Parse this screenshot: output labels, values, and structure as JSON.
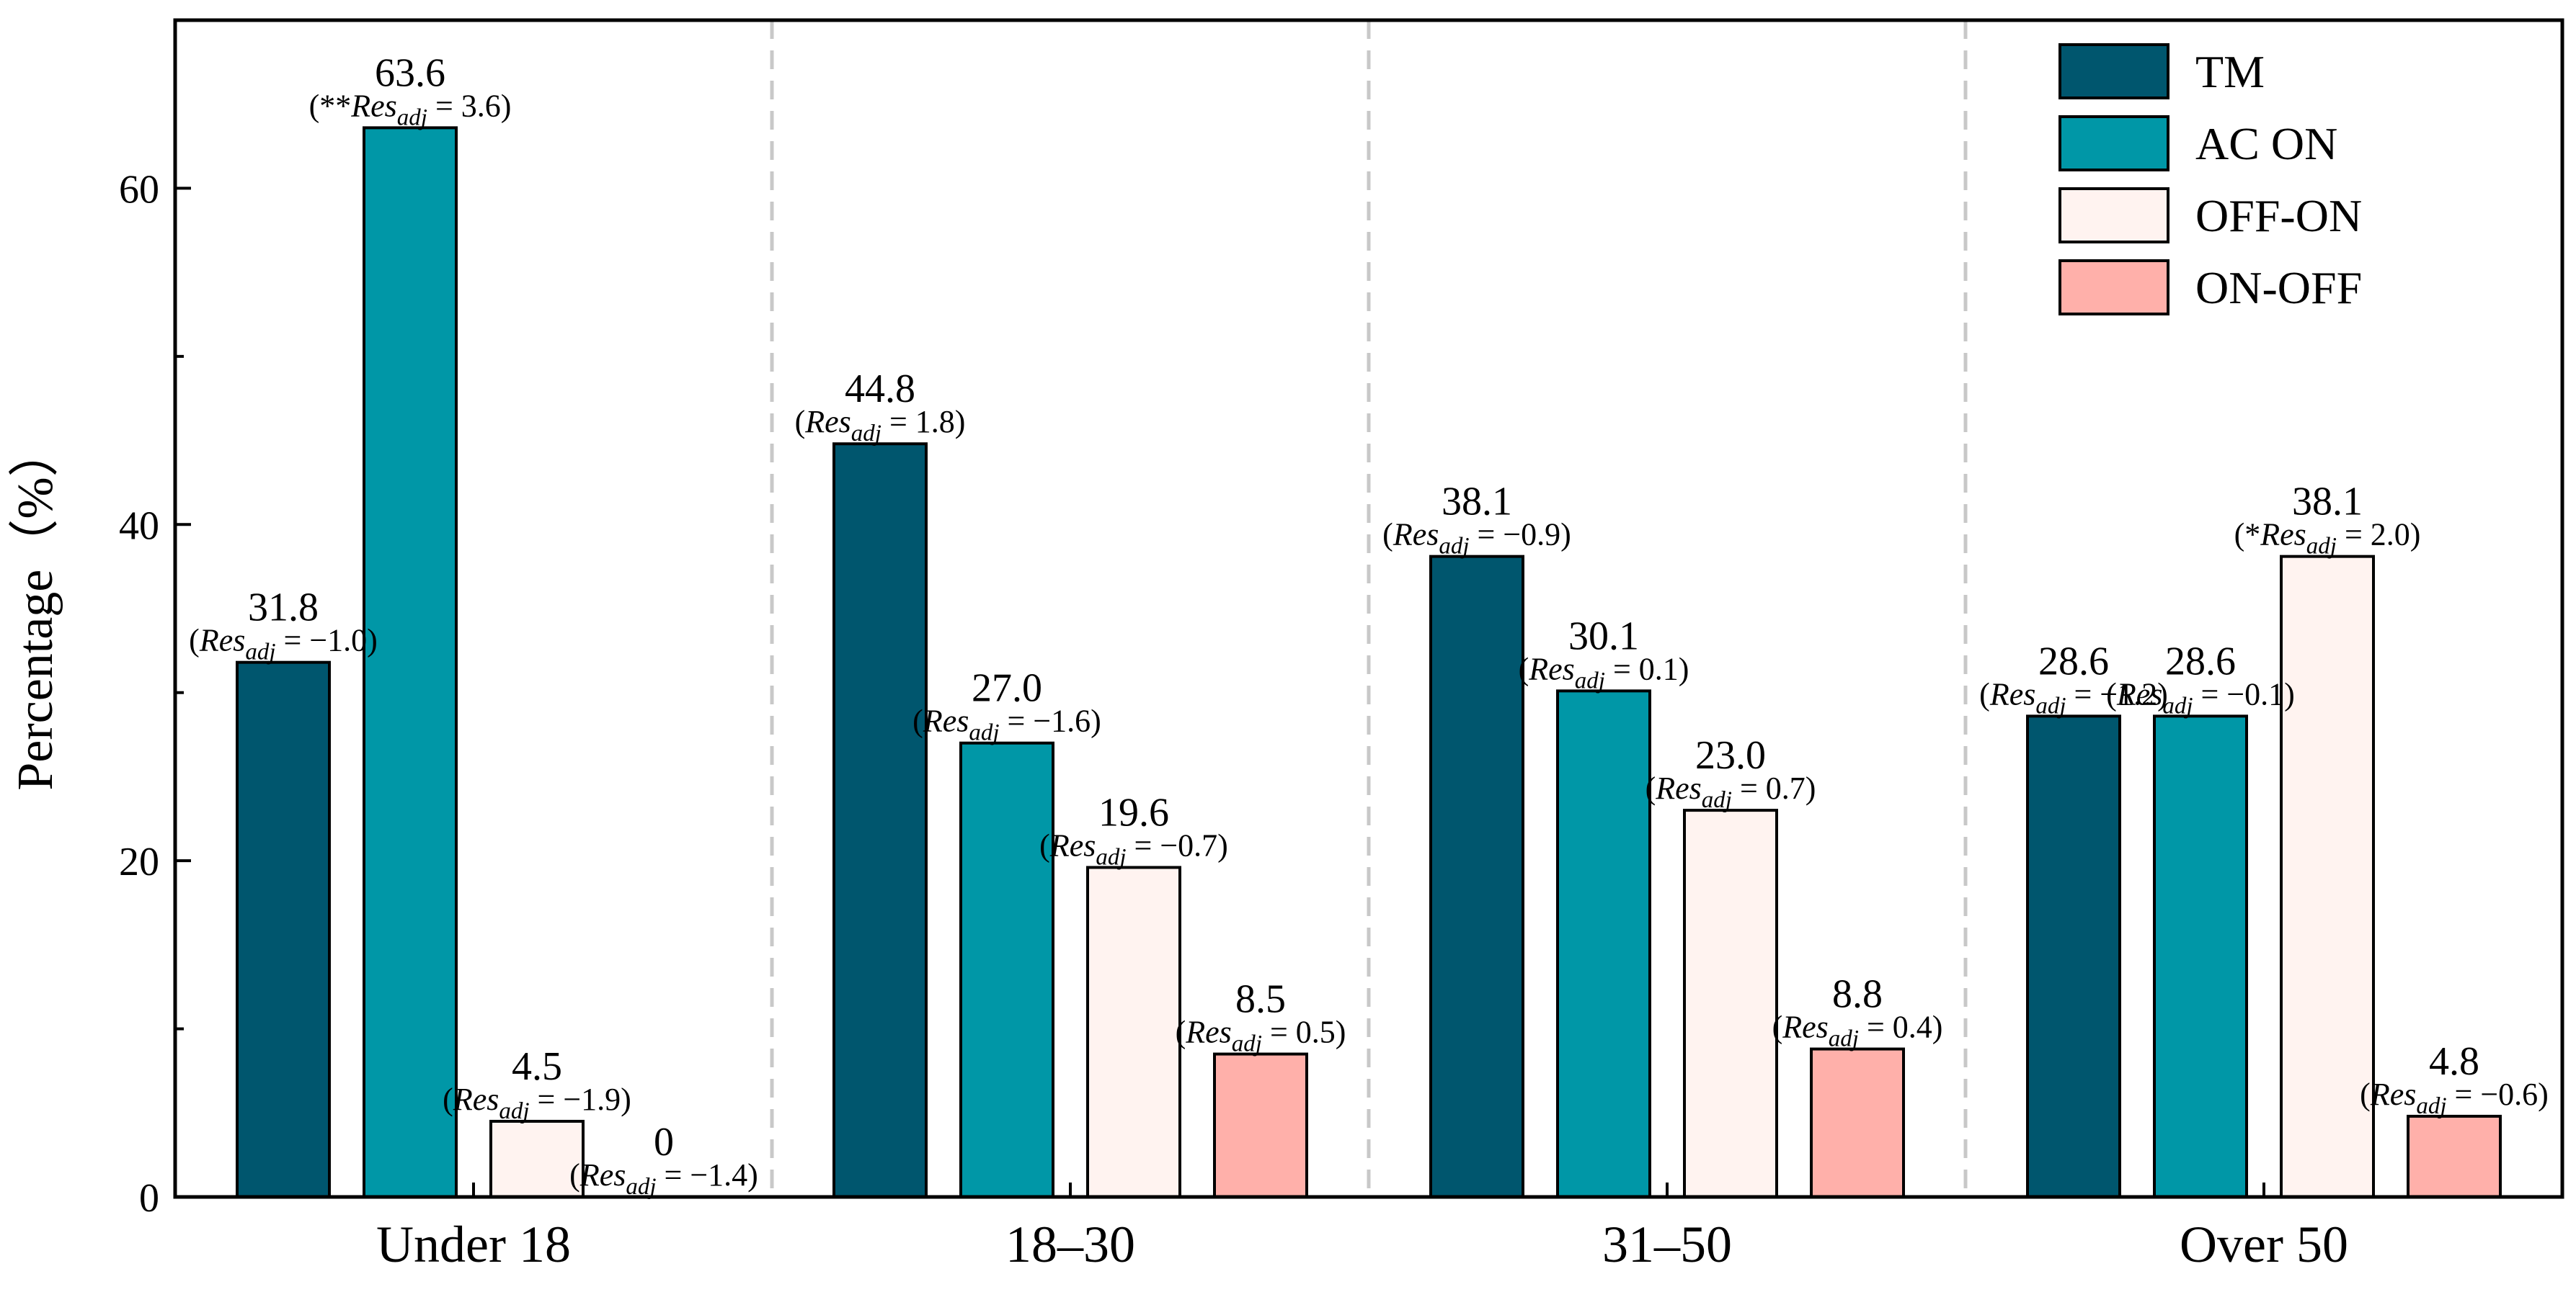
{
  "chart_data": {
    "type": "bar",
    "title": "",
    "xlabel": "",
    "ylabel": "Percentage（%）",
    "ylim": [
      0,
      70
    ],
    "yticks": [
      0,
      20,
      40,
      60
    ],
    "categories": [
      "Under 18",
      "18–30",
      "31–50",
      "Over 50"
    ],
    "series": [
      {
        "name": "TM",
        "color": "#00566e",
        "values": [
          31.8,
          44.8,
          38.1,
          28.6
        ],
        "labels": [
          "31.8",
          "44.8",
          "38.1",
          "28.6"
        ],
        "annotations": [
          {
            "prefix": "(",
            "res": "Res",
            "sub": "adj",
            "suffix": " = −1.0)"
          },
          {
            "prefix": "(",
            "res": "Res",
            "sub": "adj",
            "suffix": " = 1.8)"
          },
          {
            "prefix": "(",
            "res": "Res",
            "sub": "adj",
            "suffix": " = −0.9)"
          },
          {
            "prefix": "(",
            "res": "Res",
            "sub": "adj",
            "suffix": " = −1.2)"
          }
        ]
      },
      {
        "name": "AC ON",
        "color": "#0097a7",
        "values": [
          63.6,
          27.0,
          30.1,
          28.6
        ],
        "labels": [
          "63.6",
          "27.0",
          "30.1",
          "28.6"
        ],
        "annotations": [
          {
            "prefix": "(**",
            "res": "Res",
            "sub": "adj",
            "suffix": " = 3.6)"
          },
          {
            "prefix": "(",
            "res": "Res",
            "sub": "adj",
            "suffix": " = −1.6)"
          },
          {
            "prefix": "(",
            "res": "Res",
            "sub": "adj",
            "suffix": " = 0.1)"
          },
          {
            "prefix": "(",
            "res": "Res",
            "sub": "adj",
            "suffix": " = −0.1)"
          }
        ]
      },
      {
        "name": "OFF-ON",
        "color": "#fff3f0",
        "values": [
          4.5,
          19.6,
          23.0,
          38.1
        ],
        "labels": [
          "4.5",
          "19.6",
          "23.0",
          "38.1"
        ],
        "annotations": [
          {
            "prefix": "(",
            "res": "Res",
            "sub": "adj",
            "suffix": " = −1.9)"
          },
          {
            "prefix": "(",
            "res": "Res",
            "sub": "adj",
            "suffix": " = −0.7)"
          },
          {
            "prefix": "(",
            "res": "Res",
            "sub": "adj",
            "suffix": " = 0.7)"
          },
          {
            "prefix": "(*",
            "res": "Res",
            "sub": "adj",
            "suffix": " = 2.0)"
          }
        ]
      },
      {
        "name": "ON-OFF",
        "color": "#ffb0aa",
        "values": [
          0,
          8.5,
          8.8,
          4.8
        ],
        "labels": [
          "0",
          "8.5",
          "8.8",
          "4.8"
        ],
        "annotations": [
          {
            "prefix": "(",
            "res": "Res",
            "sub": "adj",
            "suffix": " = −1.4)"
          },
          {
            "prefix": "(",
            "res": "Res",
            "sub": "adj",
            "suffix": " = 0.5)"
          },
          {
            "prefix": "(",
            "res": "Res",
            "sub": "adj",
            "suffix": " = 0.4)"
          },
          {
            "prefix": "(",
            "res": "Res",
            "sub": "adj",
            "suffix": " = −0.6)"
          }
        ]
      }
    ],
    "legend": [
      "TM",
      "AC ON",
      "OFF-ON",
      "ON-OFF"
    ],
    "legend_position": "top-right",
    "group_separators": "dashed"
  }
}
